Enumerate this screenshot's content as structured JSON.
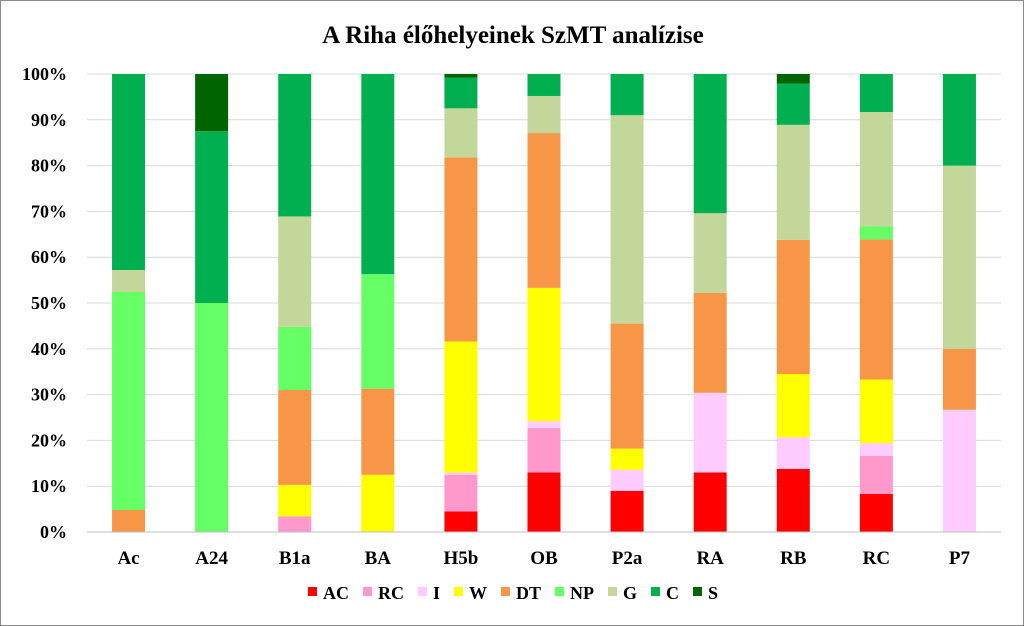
{
  "chart_data": {
    "type": "bar",
    "stacked": true,
    "percent_stacked": true,
    "title": "A Riha élőhelyeinek SzMT analízise",
    "categories": [
      "Ac",
      "A24",
      "B1a",
      "BA",
      "H5b",
      "OB",
      "P2a",
      "RA",
      "RB",
      "RC",
      "P7"
    ],
    "ylim": [
      0,
      100
    ],
    "yticks": [
      "0%",
      "10%",
      "20%",
      "30%",
      "40%",
      "50%",
      "60%",
      "70%",
      "80%",
      "90%",
      "100%"
    ],
    "grid": true,
    "legend_position": "bottom",
    "series": [
      {
        "name": "AC",
        "color": "#ff0000",
        "values": [
          0,
          0,
          0,
          0,
          4.5,
          13,
          9,
          13,
          13.8,
          8.3,
          0
        ]
      },
      {
        "name": "RC",
        "color": "#ff99cc",
        "values": [
          0,
          0,
          3.4,
          0,
          8,
          9.7,
          0,
          0,
          0,
          8.3,
          0
        ]
      },
      {
        "name": "I",
        "color": "#ffccff",
        "values": [
          0,
          0,
          0,
          0,
          0.5,
          1.5,
          4.6,
          17.4,
          6.9,
          2.8,
          26.7
        ]
      },
      {
        "name": "W",
        "color": "#ffff00",
        "values": [
          0,
          0,
          6.9,
          12.5,
          28.6,
          29.1,
          4.6,
          0,
          13.8,
          13.9,
          0
        ]
      },
      {
        "name": "DT",
        "color": "#f79646",
        "values": [
          4.8,
          0,
          20.7,
          18.8,
          40.2,
          33.8,
          27.3,
          21.8,
          29.3,
          30.6,
          13.3
        ]
      },
      {
        "name": "NP",
        "color": "#66ff66",
        "values": [
          47.6,
          50,
          13.8,
          25,
          0,
          0,
          0,
          0,
          0,
          2.8,
          0
        ]
      },
      {
        "name": "G",
        "color": "#c4d79b",
        "values": [
          4.8,
          0,
          24.1,
          0,
          10.7,
          8.1,
          45.5,
          17.4,
          25.1,
          25,
          40
        ]
      },
      {
        "name": "C",
        "color": "#00b050",
        "values": [
          42.8,
          37.5,
          31.1,
          43.7,
          6.7,
          4.8,
          9,
          30.4,
          9,
          8.3,
          20
        ]
      },
      {
        "name": "S",
        "color": "#006400",
        "values": [
          0,
          12.5,
          0,
          0,
          0.8,
          0,
          0,
          0,
          2.1,
          0,
          0
        ]
      }
    ]
  }
}
